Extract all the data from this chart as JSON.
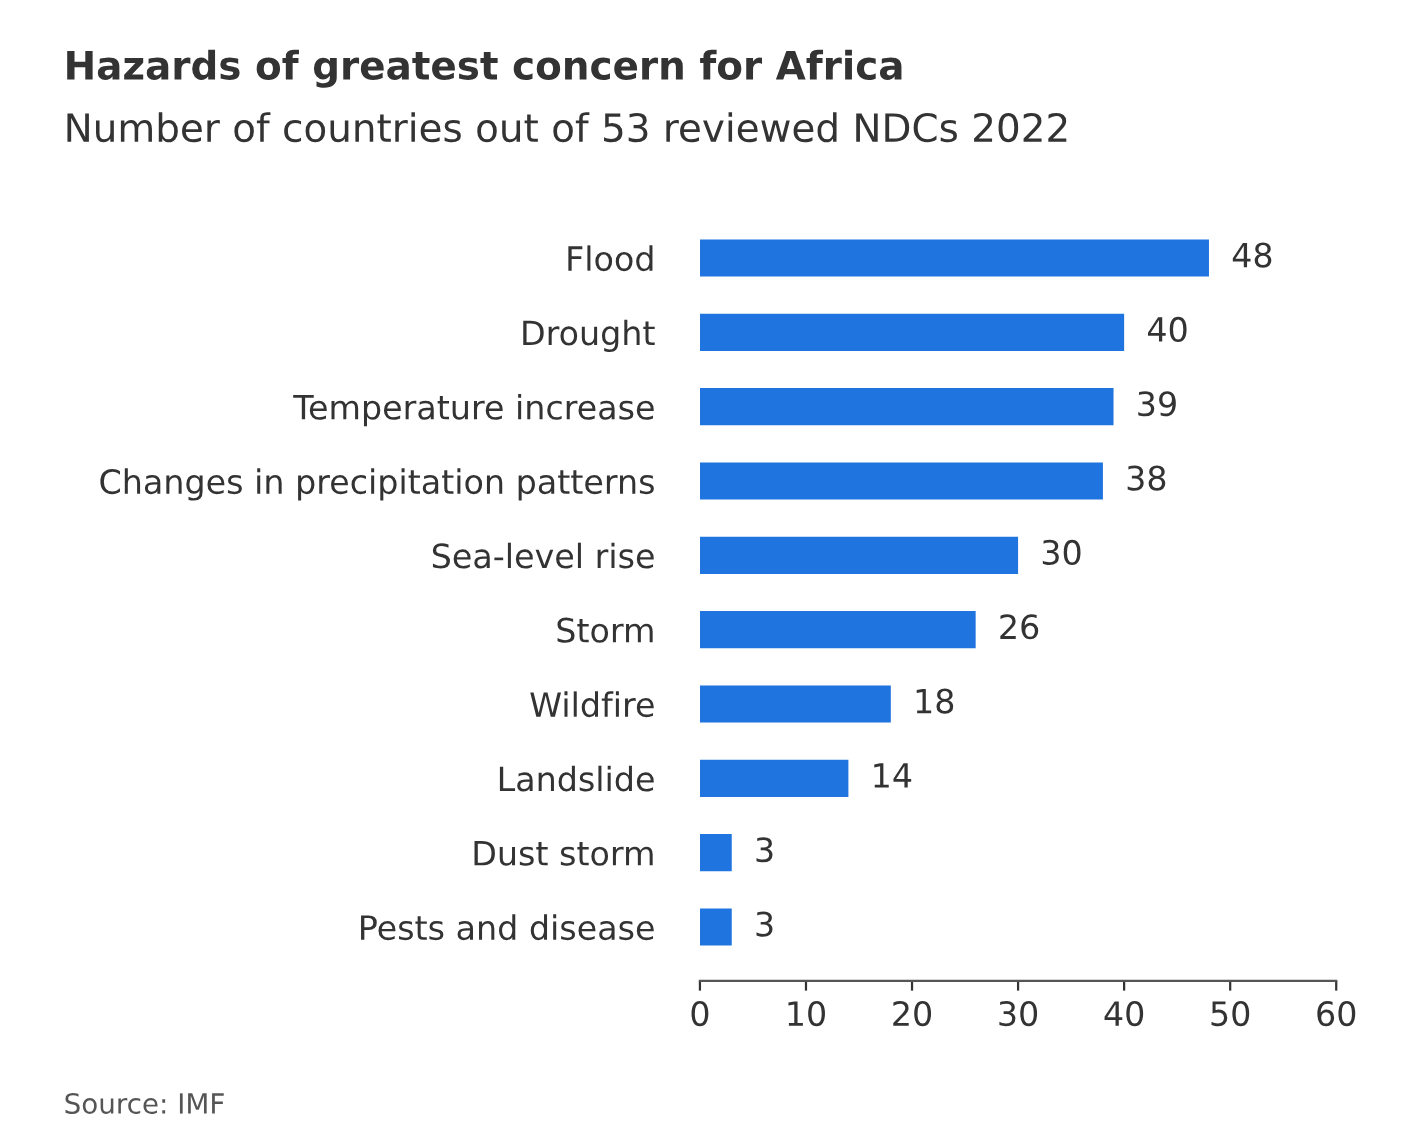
{
  "chart_data": {
    "type": "bar",
    "orientation": "horizontal",
    "title": "Hazards of greatest concern for Africa",
    "subtitle": "Number of countries out of 53 reviewed NDCs 2022",
    "categories": [
      "Flood",
      "Drought",
      "Temperature increase",
      "Changes in precipitation patterns",
      "Sea-level rise",
      "Storm",
      "Wildfire",
      "Landslide",
      "Dust storm",
      "Pests and disease"
    ],
    "values": [
      48,
      40,
      39,
      38,
      30,
      26,
      18,
      14,
      3,
      3
    ],
    "color": "#1f74e0",
    "xlim": [
      0,
      60
    ],
    "xticks": [
      0,
      10,
      20,
      30,
      40,
      50,
      60
    ],
    "data_labels": true,
    "grid": false,
    "annotations": [
      "Source: IMF"
    ]
  }
}
